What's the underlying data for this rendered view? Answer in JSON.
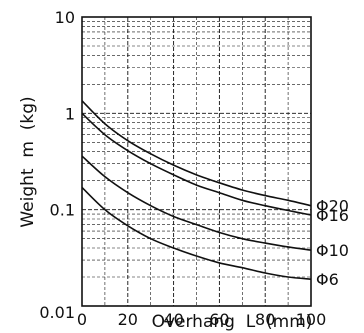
{
  "chart_data": {
    "type": "line",
    "xlabel": "Overhang  L  (mm)",
    "ylabel": "Weight  m  (kg)",
    "xlim": [
      0,
      100
    ],
    "ylim": [
      0.01,
      10
    ],
    "yscale": "log",
    "grid": true,
    "x_ticks": [
      "0",
      "20",
      "40",
      "60",
      "80",
      "100"
    ],
    "y_ticks": [
      "0.01",
      "0.1",
      "1",
      "10"
    ],
    "x": [
      0,
      10,
      20,
      30,
      40,
      50,
      60,
      70,
      80,
      90,
      100
    ],
    "series": [
      {
        "name": "Φ20",
        "values": [
          1.35,
          0.78,
          0.52,
          0.38,
          0.29,
          0.23,
          0.19,
          0.16,
          0.14,
          0.125,
          0.11
        ]
      },
      {
        "name": "Φ16",
        "values": [
          1.0,
          0.6,
          0.41,
          0.3,
          0.23,
          0.18,
          0.15,
          0.125,
          0.11,
          0.098,
          0.088
        ]
      },
      {
        "name": "Φ10",
        "values": [
          0.36,
          0.22,
          0.15,
          0.11,
          0.085,
          0.07,
          0.058,
          0.05,
          0.045,
          0.041,
          0.038
        ]
      },
      {
        "name": "Φ6",
        "values": [
          0.17,
          0.1,
          0.068,
          0.05,
          0.04,
          0.033,
          0.028,
          0.025,
          0.022,
          0.02,
          0.019
        ]
      }
    ]
  }
}
